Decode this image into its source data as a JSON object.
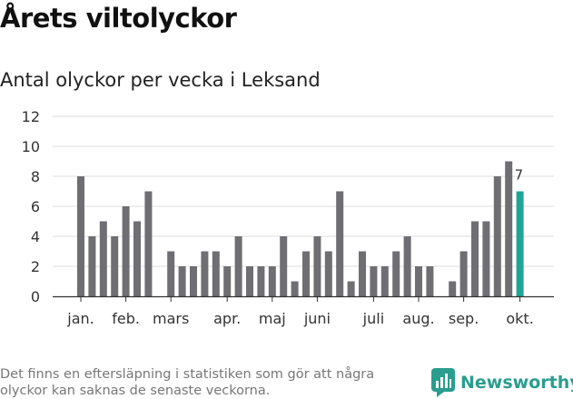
{
  "header": {
    "title": "Årets viltolyckor",
    "subtitle": "Antal olyckor per vecka i Leksand"
  },
  "footer": {
    "note": "Det finns en eftersläpning i statistiken som gör att några olyckor kan saknas de senaste veckorna.",
    "brand": "Newsworthy"
  },
  "colors": {
    "bar": "#6e6e73",
    "highlight": "#21a495",
    "grid": "#dddddd",
    "brand": "#2a9d8f"
  },
  "chart_data": {
    "type": "bar",
    "title": "Antal olyckor per vecka i Leksand",
    "xlabel": "",
    "ylabel": "",
    "ylim": [
      0,
      12
    ],
    "yticks": [
      0,
      2,
      4,
      6,
      8,
      10,
      12
    ],
    "grid": true,
    "weeks": [
      1,
      2,
      3,
      4,
      5,
      6,
      7,
      8,
      9,
      10,
      11,
      12,
      13,
      14,
      15,
      16,
      17,
      18,
      19,
      20,
      21,
      22,
      23,
      24,
      25,
      26,
      27,
      28,
      29,
      30,
      31,
      32,
      33,
      34,
      35,
      36,
      37,
      38,
      39,
      40
    ],
    "values": [
      8,
      4,
      5,
      4,
      6,
      5,
      7,
      0,
      3,
      2,
      2,
      3,
      3,
      2,
      4,
      2,
      2,
      2,
      4,
      1,
      3,
      4,
      3,
      7,
      1,
      3,
      2,
      2,
      3,
      4,
      2,
      2,
      0,
      1,
      3,
      5,
      5,
      8,
      9,
      7
    ],
    "highlight_index": 39,
    "highlight_label": "7",
    "month_labels": [
      {
        "label": "jan.",
        "week": 1
      },
      {
        "label": "feb.",
        "week": 5
      },
      {
        "label": "mars",
        "week": 9
      },
      {
        "label": "apr.",
        "week": 14
      },
      {
        "label": "maj",
        "week": 18
      },
      {
        "label": "juni",
        "week": 22
      },
      {
        "label": "juli",
        "week": 27
      },
      {
        "label": "aug.",
        "week": 31
      },
      {
        "label": "sep.",
        "week": 35
      },
      {
        "label": "okt.",
        "week": 40
      }
    ]
  }
}
